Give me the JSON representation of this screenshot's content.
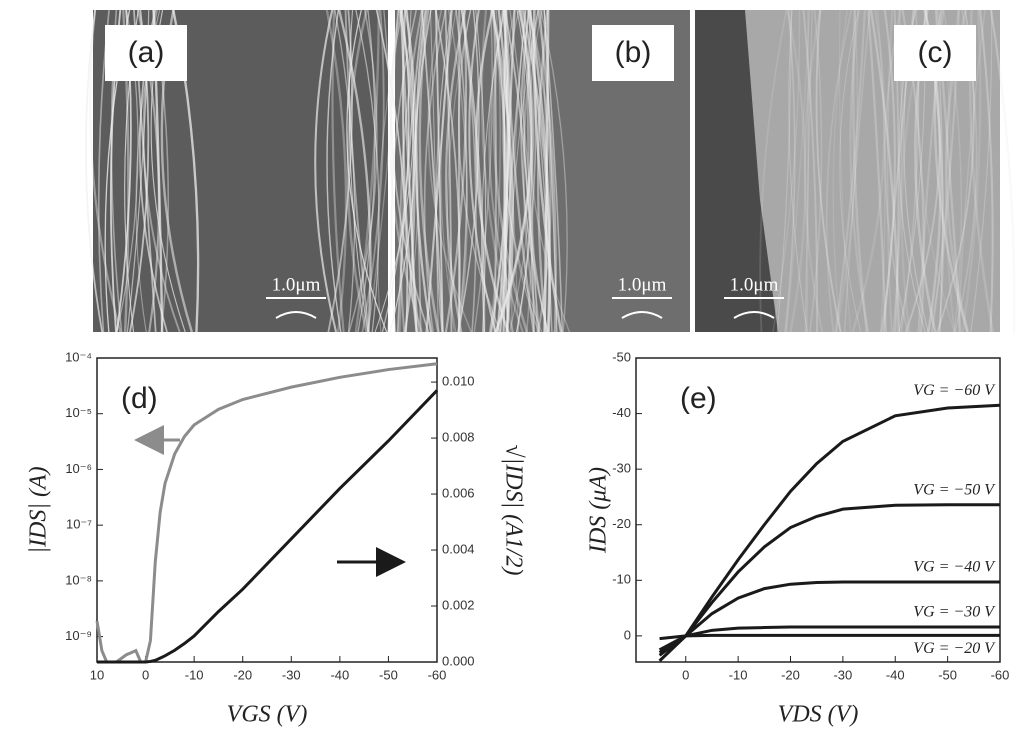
{
  "images": [
    {
      "label": "(a)",
      "scale_bar": "1.0μm"
    },
    {
      "label": "(b)",
      "scale_bar": "1.0μm"
    },
    {
      "label": "(c)",
      "scale_bar": "1.0μm"
    }
  ],
  "chart_data": [
    {
      "type": "line",
      "label": "(d)",
      "xlabel": "VGS (V)",
      "ylabel": "|IDS| (A)",
      "y2label": "√|IDS| (A1/2)",
      "x": [
        10,
        9,
        8,
        6,
        4,
        2,
        1,
        0,
        -1,
        -2,
        -3,
        -4,
        -6,
        -8,
        -10,
        -15,
        -20,
        -30,
        -40,
        -50,
        -60
      ],
      "xlim": [
        10,
        -60
      ],
      "xticks": [
        10,
        0,
        -10,
        -20,
        -30,
        -40,
        -50,
        -60
      ],
      "ylog": true,
      "ylim": [
        3.5e-10,
        0.0001
      ],
      "yticks": [
        {
          "value": 1e-09,
          "label": "10⁻⁹"
        },
        {
          "value": 1e-08,
          "label": "10⁻⁸"
        },
        {
          "value": 1e-07,
          "label": "10⁻⁷"
        },
        {
          "value": 1e-06,
          "label": "10⁻⁶"
        },
        {
          "value": 1e-05,
          "label": "10⁻⁵"
        },
        {
          "value": 0.0001,
          "label": "10⁻⁴"
        }
      ],
      "y2lim": [
        0,
        0.01086
      ],
      "y2ticks": [
        {
          "value": 0,
          "label": "0.000"
        },
        {
          "value": 0.002,
          "label": "0.002"
        },
        {
          "value": 0.004,
          "label": "0.004"
        },
        {
          "value": 0.006,
          "label": "0.006"
        },
        {
          "value": 0.008,
          "label": "0.008"
        },
        {
          "value": 0.01,
          "label": "0.010"
        }
      ],
      "series": [
        {
          "color": "#8c8c8c",
          "axis": "y",
          "values": [
            1.9e-09,
            5.6e-10,
            3.5e-10,
            3.5e-10,
            4.7e-10,
            5.6e-10,
            3.5e-10,
            3.5e-10,
            8.5e-10,
            2.2e-08,
            1.7e-07,
            5.6e-07,
            1.9e-06,
            3.9e-06,
            6.3e-06,
            1.2e-05,
            1.8e-05,
            3e-05,
            4.5e-05,
            6.2e-05,
            7.9e-05
          ]
        },
        {
          "color": "#1a1a1a",
          "axis": "y2",
          "values": [
            0,
            0,
            0,
            0,
            0,
            0,
            0,
            0,
            2e-05,
            6e-05,
            0.00014,
            0.00022,
            0.00042,
            0.00066,
            0.00093,
            0.0018,
            0.0026,
            0.0044,
            0.0062,
            0.0079,
            0.0097
          ]
        }
      ]
    },
    {
      "type": "line",
      "label": "(e)",
      "xlabel": "VDS (V)",
      "ylabel": "IDS (μA)",
      "x": [
        5,
        0,
        -5,
        -10,
        -15,
        -20,
        -25,
        -30,
        -40,
        -50,
        -60
      ],
      "xlim": [
        9.5,
        -60
      ],
      "xticks": [
        0,
        -10,
        -20,
        -30,
        -40,
        -50,
        -60
      ],
      "ylim": [
        4.7,
        -50
      ],
      "yticks": [
        0,
        -10,
        -20,
        -30,
        -40,
        -50
      ],
      "series": [
        {
          "name": "VG = −60 V",
          "color": "#1a1a1a",
          "values": [
            4.5,
            0,
            -7,
            -13.7,
            -20,
            -26,
            -31,
            -35,
            -39.6,
            -41,
            -41.5
          ]
        },
        {
          "name": "VG = −50 V",
          "color": "#1a1a1a",
          "values": [
            3.5,
            0,
            -6,
            -11.5,
            -16,
            -19.5,
            -21.5,
            -22.8,
            -23.5,
            -23.6,
            -23.6
          ]
        },
        {
          "name": "VG = −40 V",
          "color": "#1a1a1a",
          "values": [
            3,
            0,
            -4,
            -6.8,
            -8.5,
            -9.3,
            -9.6,
            -9.7,
            -9.7,
            -9.7,
            -9.7
          ]
        },
        {
          "name": "VG = −30 V",
          "color": "#1a1a1a",
          "values": [
            2.5,
            0,
            -1,
            -1.4,
            -1.5,
            -1.6,
            -1.6,
            -1.6,
            -1.6,
            -1.6,
            -1.6
          ]
        },
        {
          "name": "VG = −20 V",
          "color": "#1a1a1a",
          "values": [
            0.5,
            0,
            -0.1,
            -0.1,
            -0.1,
            -0.1,
            -0.1,
            -0.1,
            -0.1,
            -0.1,
            -0.1
          ]
        }
      ]
    }
  ]
}
